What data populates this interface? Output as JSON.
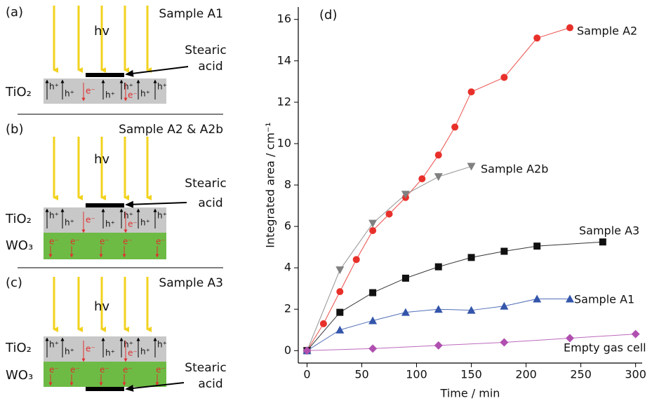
{
  "chart_data": {
    "type": "scatter",
    "title": "(d)",
    "x_label": "Time / min",
    "y_label": "Integrated area / cm⁻¹",
    "xlim": [
      -8,
      306
    ],
    "xticks": [
      0,
      50,
      100,
      150,
      200,
      250,
      300
    ],
    "ylim": [
      -0.6,
      16.6
    ],
    "yticks": [
      0,
      2,
      4,
      6,
      8,
      10,
      12,
      14,
      16
    ],
    "series": [
      {
        "name": "Sample A2",
        "color": "#e8302a",
        "marker": "circle",
        "x": [
          0,
          15,
          30,
          45,
          60,
          75,
          90,
          105,
          120,
          135,
          150,
          180,
          210,
          240
        ],
        "values": [
          0,
          1.3,
          2.85,
          4.4,
          5.8,
          6.6,
          7.4,
          8.3,
          9.45,
          10.8,
          12.5,
          13.2,
          15.1,
          15.6
        ]
      },
      {
        "name": "Sample A2b",
        "color": "#808080",
        "marker": "triangle-down",
        "x": [
          0,
          30,
          60,
          90,
          120,
          150
        ],
        "values": [
          0,
          3.9,
          6.15,
          7.55,
          8.4,
          8.9
        ]
      },
      {
        "name": "Sample A3",
        "color": "#111111",
        "marker": "square",
        "x": [
          0,
          30,
          60,
          90,
          120,
          150,
          180,
          210,
          270
        ],
        "values": [
          0,
          1.85,
          2.8,
          3.5,
          4.05,
          4.5,
          4.8,
          5.05,
          5.25
        ]
      },
      {
        "name": "Sample A1",
        "color": "#3355aa",
        "marker": "triangle-up",
        "x": [
          0,
          30,
          60,
          90,
          120,
          150,
          180,
          210,
          240
        ],
        "values": [
          0,
          1.0,
          1.45,
          1.85,
          2.0,
          1.95,
          2.15,
          2.5,
          2.5
        ]
      },
      {
        "name": "Empty gas cell",
        "color": "#b04fb0",
        "marker": "diamond",
        "x": [
          0,
          60,
          120,
          180,
          240,
          300
        ],
        "values": [
          0,
          0.1,
          0.25,
          0.4,
          0.6,
          0.8
        ]
      }
    ]
  },
  "diagrams": {
    "hole": "h⁺",
    "electron": "e⁻",
    "panels": [
      {
        "label": "(a)",
        "sample": "Sample A1",
        "photon": "hv",
        "adsorbate": [
          "Stearic",
          "acid"
        ],
        "layers": [
          "TiO₂"
        ]
      },
      {
        "label": "(b)",
        "sample": "Sample A2 & A2b",
        "photon": "hv",
        "adsorbate": [
          "Stearic",
          "acid"
        ],
        "layers": [
          "TiO₂",
          "WO₃"
        ]
      },
      {
        "label": "(c)",
        "sample": "Sample A3",
        "photon": "hv",
        "adsorbate": [
          "Stearic",
          "acid"
        ],
        "layers": [
          "TiO₂",
          "WO₃"
        ]
      }
    ]
  }
}
